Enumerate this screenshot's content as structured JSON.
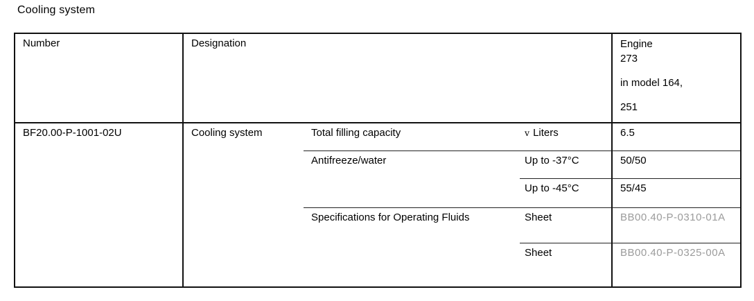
{
  "title": "Cooling system",
  "table": {
    "headers": {
      "number": "Number",
      "designation": "Designation",
      "engine_lines": [
        "Engine",
        "273",
        "in model 164,",
        "251"
      ]
    },
    "row": {
      "number": "BF20.00-P-1001-02U",
      "designation": "Cooling system",
      "items": [
        {
          "label": "Total filling capacity",
          "symbol": "v",
          "qualifier": "Liters",
          "value": "6.5"
        },
        {
          "label": "Antifreeze/water",
          "qualifier": "Up to -37°C",
          "value": "50/50"
        },
        {
          "qualifier": "Up to -45°C",
          "value": "55/45"
        },
        {
          "label": "Specifications for Operating Fluids",
          "qualifier": "Sheet",
          "value": "BB00.40-P-0310-01A"
        },
        {
          "qualifier": "Sheet",
          "value": "BB00.40-P-0325-00A"
        }
      ]
    }
  },
  "colors": {
    "background": "#ffffff",
    "border": "#111111",
    "text": "#000000",
    "link_gray": "#9b9b9b"
  }
}
